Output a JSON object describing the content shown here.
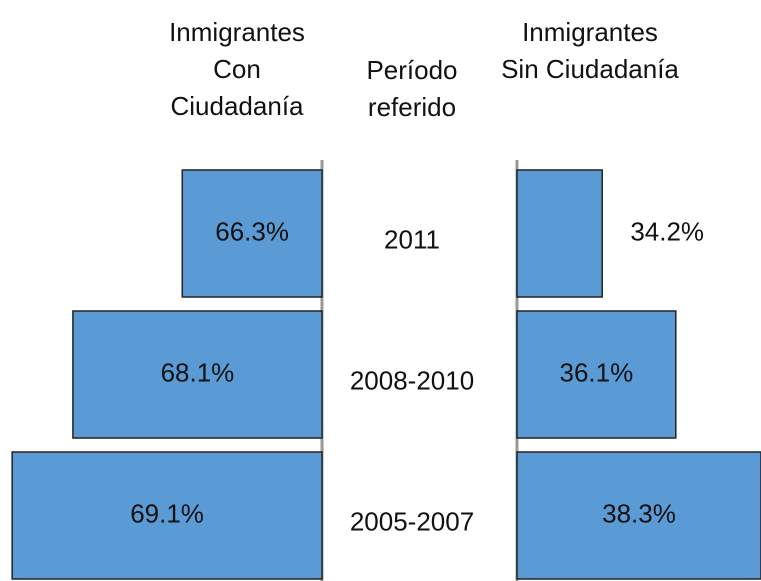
{
  "chart_data": {
    "type": "bar",
    "orientation": "horizontal",
    "ylabel": "Período referido",
    "categories": [
      "2011",
      "2008-2010",
      "2005-2007"
    ],
    "series": [
      {
        "name": "Inmigrantes Con Ciudadanía",
        "side": "left",
        "color": "#5b9bd5",
        "values": [
          66.3,
          68.1,
          69.1
        ],
        "value_labels": [
          "66.3%",
          "68.1%",
          "69.1%"
        ],
        "xlim": [
          64,
          69.3
        ]
      },
      {
        "name": "Inmigrantes Sin Ciudadanía",
        "side": "right",
        "color": "#5b9bd5",
        "values": [
          34.2,
          36.1,
          38.3
        ],
        "value_labels": [
          "34.2%",
          "36.1%",
          "38.3%"
        ],
        "xlim": [
          32,
          38.3
        ]
      }
    ]
  }
}
